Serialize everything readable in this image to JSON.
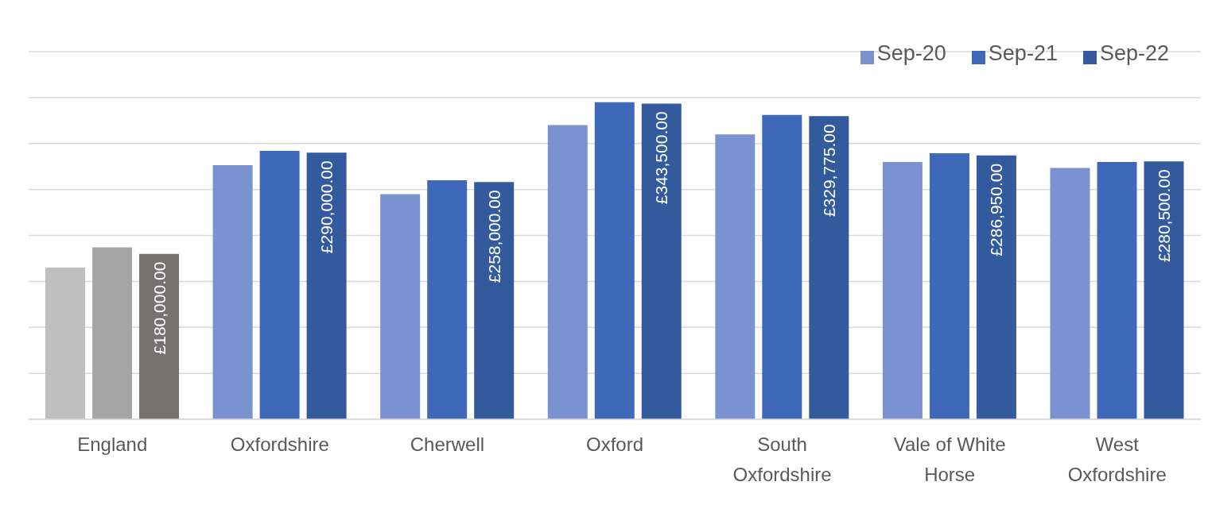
{
  "chart_data": {
    "type": "bar",
    "categories": [
      "England",
      "Oxfordshire",
      "Cherwell",
      "Oxford",
      "South Oxfordshire",
      "Vale of White Horse",
      "West Oxfordshire"
    ],
    "series": [
      {
        "name": "Sep-20",
        "color": "#7a93d0",
        "colors": [
          "#bfbfbf",
          "#7a93d0",
          "#7a93d0",
          "#7a93d0",
          "#7a93d0",
          "#7a93d0",
          "#7a93d0"
        ],
        "values": [
          165000,
          276500,
          245000,
          320000,
          310000,
          280000,
          273500
        ]
      },
      {
        "name": "Sep-21",
        "color": "#4068b8",
        "colors": [
          "#a5a5a5",
          "#4068b8",
          "#4068b8",
          "#4068b8",
          "#4068b8",
          "#4068b8",
          "#4068b8"
        ],
        "values": [
          187000,
          292000,
          260000,
          345000,
          331000,
          289500,
          280000
        ]
      },
      {
        "name": "Sep-22",
        "color": "#325a9c",
        "colors": [
          "#767171",
          "#325a9c",
          "#325a9c",
          "#325a9c",
          "#325a9c",
          "#325a9c",
          "#325a9c"
        ],
        "values": [
          180000,
          290000,
          258000,
          343500,
          329775,
          286950,
          280500
        ],
        "value_labels": [
          "£180,000.00",
          "£290,000.00",
          "£258,000.00",
          "£343,500.00",
          "£329,775.00",
          "£286,950.00",
          "£280,500.00"
        ]
      }
    ],
    "ylim": [
      0,
      400000
    ],
    "yticks": [
      {
        "value": 0,
        "label": null
      },
      {
        "value": 50000,
        "label": null
      },
      {
        "value": 100000,
        "label": null
      },
      {
        "value": 150000,
        "label": null
      },
      {
        "value": 200000,
        "label": null
      },
      {
        "value": 250000,
        "label": null
      },
      {
        "value": 300000,
        "label": null
      },
      {
        "value": 350000,
        "label": null
      },
      {
        "value": 400000,
        "label": null
      }
    ],
    "tick_labels": "x",
    "grid": "y",
    "legend": "top right"
  }
}
